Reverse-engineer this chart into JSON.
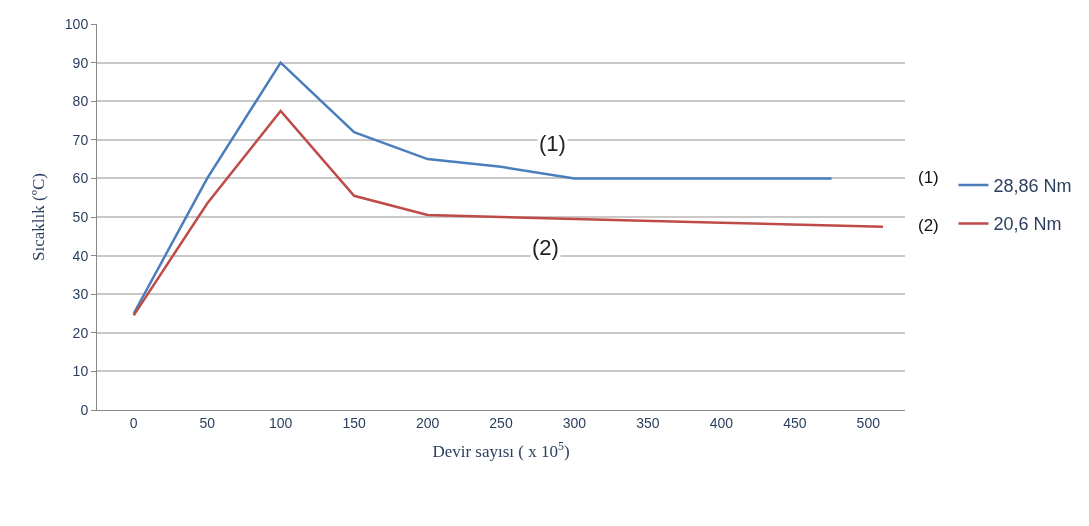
{
  "chart_data": {
    "type": "line",
    "xlabel": "Devir sayısı ( x 10$^{5}$)",
    "ylabel": "Sıcaklık (ºC)",
    "xlim": [
      -25,
      525
    ],
    "xticks": [
      0,
      50,
      100,
      150,
      200,
      250,
      300,
      350,
      400,
      450,
      500
    ],
    "ylim": [
      0,
      100
    ],
    "yticks": [
      0,
      10,
      20,
      30,
      40,
      50,
      60,
      70,
      80,
      90,
      100
    ],
    "grid": "y",
    "legend": "right",
    "marker": "none",
    "line_style": "solid",
    "series": [
      {
        "name": "28,86 Nm",
        "color": "#4a7ebb",
        "x": [
          0,
          50,
          100,
          150,
          200,
          250,
          300,
          475
        ],
        "values": [
          25,
          60,
          90,
          72,
          65,
          63,
          60,
          60
        ]
      },
      {
        "name": "20,6 Nm",
        "color": "#be4b48",
        "x": [
          0,
          50,
          100,
          150,
          200,
          300,
          400,
          510
        ],
        "values": [
          24.5,
          53.5,
          77.5,
          55.5,
          50.5,
          49.5,
          48.5,
          47.5
        ]
      }
    ],
    "annotations": [
      {
        "text": "(1)",
        "x": 285,
        "y": 69
      },
      {
        "text": "(2)",
        "x": 280,
        "y": 42
      },
      "(1)",
      "(2)"
    ]
  }
}
